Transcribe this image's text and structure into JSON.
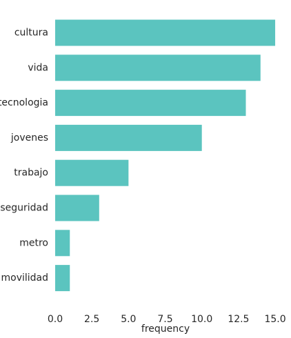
{
  "chart_data": {
    "type": "bar",
    "orientation": "horizontal",
    "categories": [
      "cultura",
      "vida",
      "tecnologia",
      "jovenes",
      "trabajo",
      "seguridad",
      "metro",
      "movilidad"
    ],
    "values": [
      15,
      14,
      13,
      10,
      5,
      3,
      1,
      1
    ],
    "xlabel": "frequency",
    "ylabel": "",
    "xlim": [
      0,
      15.75
    ],
    "x_ticks": [
      "0.0",
      "2.5",
      "5.0",
      "7.5",
      "10.0",
      "12.5",
      "15.0"
    ],
    "bar_color": "#5bc4bf",
    "grid": false
  }
}
